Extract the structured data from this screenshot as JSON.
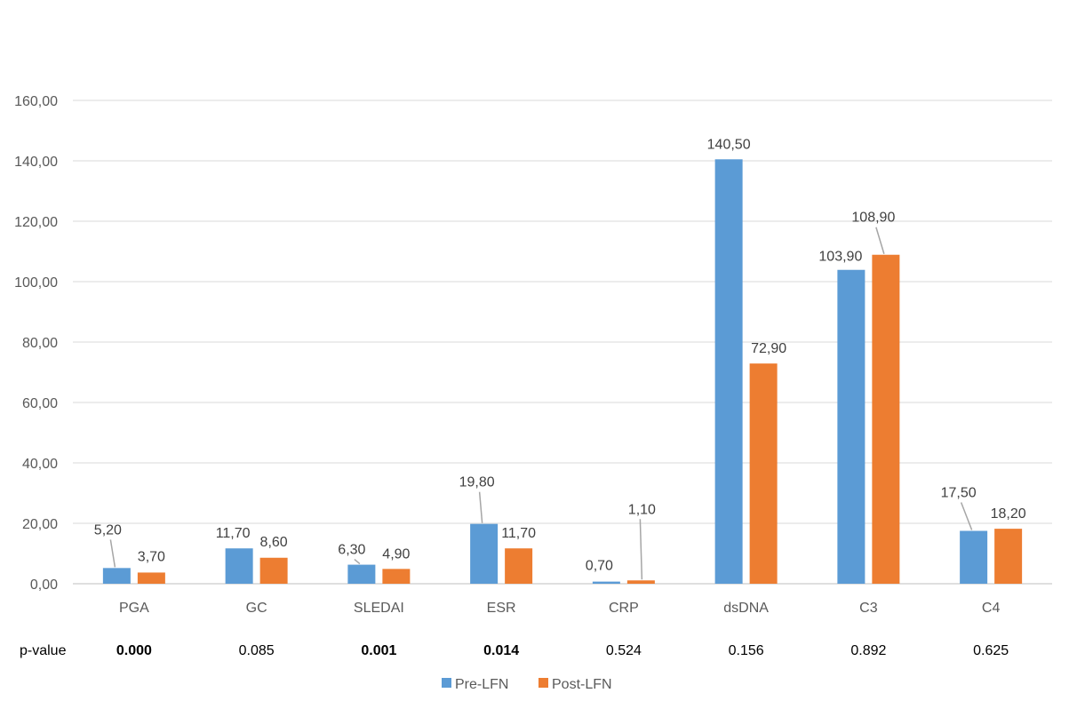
{
  "chart_data": {
    "type": "bar",
    "categories": [
      "PGA",
      "GC",
      "SLEDAI",
      "ESR",
      "CRP",
      "dsDNA",
      "C3",
      "C4"
    ],
    "series": [
      {
        "name": "Pre-LFN",
        "color": "#5B9BD5",
        "values": [
          5.2,
          11.7,
          6.3,
          19.8,
          0.7,
          140.5,
          103.9,
          17.5
        ],
        "labels": [
          "5,20",
          "11,70",
          "6,30",
          "19,80",
          "0,70",
          "140,50",
          "103,90",
          "17,50"
        ]
      },
      {
        "name": "Post-LFN",
        "color": "#ED7D31",
        "values": [
          3.7,
          8.6,
          4.9,
          11.7,
          1.1,
          72.9,
          108.9,
          18.2
        ],
        "labels": [
          "3,70",
          "8,60",
          "4,90",
          "11,70",
          "1,10",
          "72,90",
          "108,90",
          "18,20"
        ]
      }
    ],
    "ylim": [
      0,
      160
    ],
    "yticks": [
      0,
      20,
      40,
      60,
      80,
      100,
      120,
      140,
      160
    ],
    "ytick_labels": [
      "0,00",
      "20,00",
      "40,00",
      "60,00",
      "80,00",
      "100,00",
      "120,00",
      "140,00",
      "160,00"
    ],
    "gridlines": true,
    "legend_position": "bottom",
    "pvalue_label": "p-value",
    "pvalues": [
      {
        "text": "0.000",
        "bold": true
      },
      {
        "text": "0.085",
        "bold": false
      },
      {
        "text": "0.001",
        "bold": true
      },
      {
        "text": "0.014",
        "bold": true
      },
      {
        "text": "0.524",
        "bold": false
      },
      {
        "text": "0.156",
        "bold": false
      },
      {
        "text": "0.892",
        "bold": false
      },
      {
        "text": "0.625",
        "bold": false
      }
    ],
    "colors": {
      "grid": "#D9D9D9",
      "axis": "#BFBFBF",
      "leader": "#A6A6A6"
    }
  }
}
